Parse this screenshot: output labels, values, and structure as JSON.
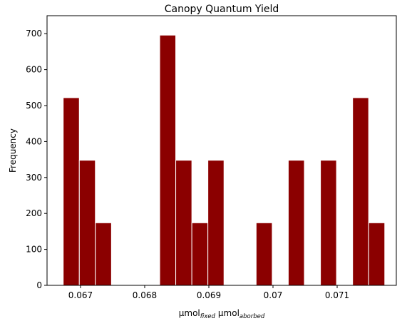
{
  "chart_data": {
    "type": "histogram",
    "title": "Canopy Quantum Yield",
    "xlabel": {
      "parts": [
        "μmol",
        "fixed",
        "μmol",
        "aborbed"
      ]
    },
    "ylabel": "Frequency",
    "bins": [
      0.06673,
      0.066981,
      0.067231,
      0.067482,
      0.067732,
      0.067983,
      0.068234,
      0.068484,
      0.068735,
      0.068985,
      0.069236,
      0.069487,
      0.069737,
      0.069988,
      0.070238,
      0.070489,
      0.07074,
      0.07099,
      0.071241,
      0.071491,
      0.071742
    ],
    "values": [
      522,
      348,
      174,
      0,
      0,
      0,
      696,
      348,
      174,
      348,
      0,
      0,
      174,
      0,
      348,
      0,
      348,
      0,
      522,
      174
    ],
    "color": "#8b0000",
    "edgecolor": "#ffffff",
    "xlim": [
      0.066478,
      0.071922
    ],
    "xticks": [
      0.067,
      0.068,
      0.069,
      0.07,
      0.071
    ],
    "ylim": [
      0,
      750
    ],
    "yticks": [
      0,
      100,
      200,
      300,
      400,
      500,
      600,
      700
    ]
  }
}
